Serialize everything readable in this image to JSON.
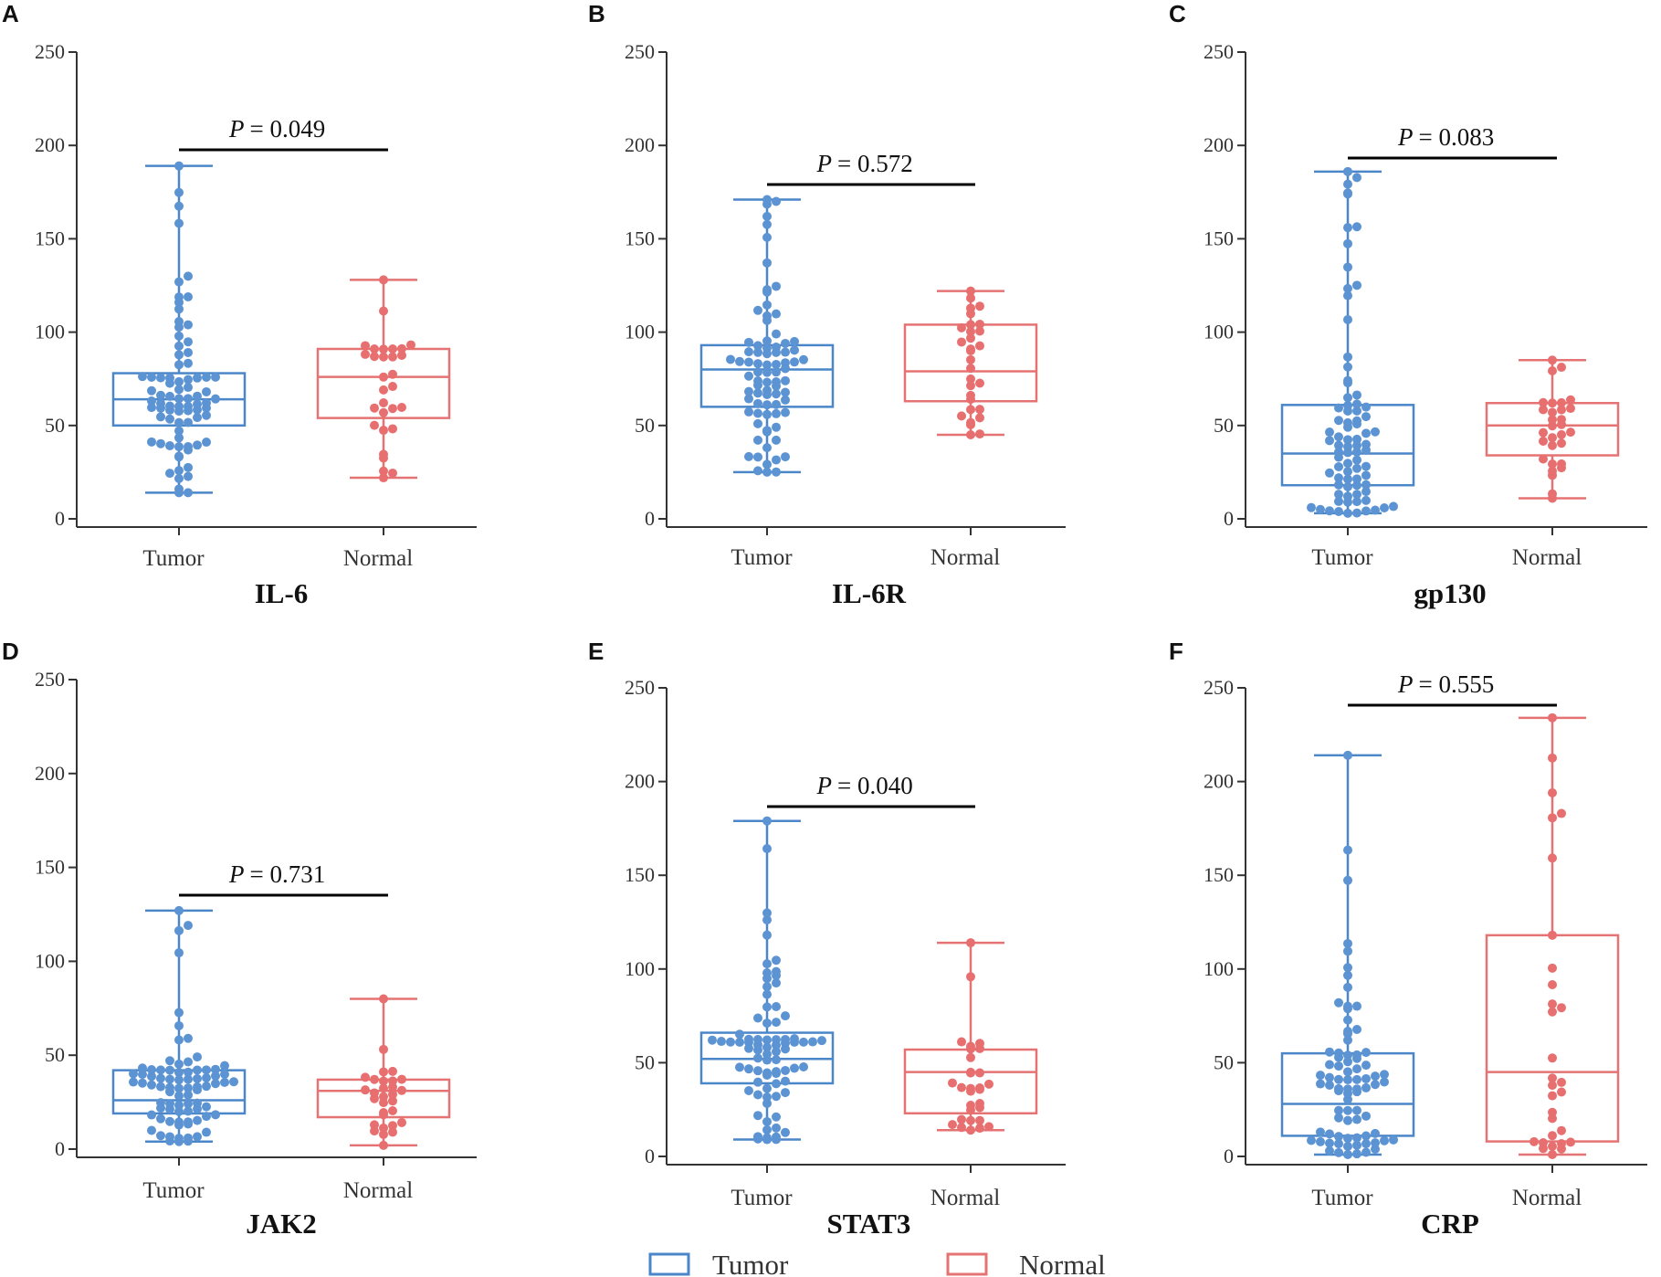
{
  "chart_data": [
    {
      "panel": "A",
      "type": "box",
      "title": "IL-6",
      "ylim": [
        0,
        250
      ],
      "yticks": [
        0,
        50,
        100,
        150,
        200,
        250
      ],
      "categories": [
        "Tumor",
        "Normal"
      ],
      "p_label": "P",
      "p_value": "= 0.049",
      "groups": [
        {
          "name": "Tumor",
          "min": 14,
          "q1": 50,
          "median": 64,
          "q3": 78,
          "max": 189,
          "n": 80
        },
        {
          "name": "Normal",
          "min": 22,
          "q1": 54,
          "median": 76,
          "q3": 91,
          "max": 128,
          "n": 30
        }
      ]
    },
    {
      "panel": "B",
      "type": "box",
      "title": "IL-6R",
      "ylim": [
        0,
        250
      ],
      "yticks": [
        0,
        50,
        100,
        150,
        200,
        250
      ],
      "categories": [
        "Tumor",
        "Normal"
      ],
      "p_label": "P",
      "p_value": "= 0.572",
      "groups": [
        {
          "name": "Tumor",
          "min": 25,
          "q1": 60,
          "median": 80,
          "q3": 93,
          "max": 171,
          "n": 80
        },
        {
          "name": "Normal",
          "min": 45,
          "q1": 63,
          "median": 79,
          "q3": 104,
          "max": 122,
          "n": 30
        }
      ]
    },
    {
      "panel": "C",
      "type": "box",
      "title": "gp130",
      "ylim": [
        0,
        250
      ],
      "yticks": [
        0,
        50,
        100,
        150,
        200,
        250
      ],
      "categories": [
        "Tumor",
        "Normal"
      ],
      "p_label": "P",
      "p_value": "= 0.083",
      "groups": [
        {
          "name": "Tumor",
          "min": 3,
          "q1": 18,
          "median": 35,
          "q3": 61,
          "max": 186,
          "n": 80
        },
        {
          "name": "Normal",
          "min": 11,
          "q1": 34,
          "median": 50,
          "q3": 62,
          "max": 85,
          "n": 30
        }
      ]
    },
    {
      "panel": "D",
      "type": "box",
      "title": "JAK2",
      "ylim": [
        0,
        250
      ],
      "yticks": [
        0,
        50,
        100,
        150,
        200,
        250
      ],
      "categories": [
        "Tumor",
        "Normal"
      ],
      "p_label": "P",
      "p_value": "= 0.731",
      "groups": [
        {
          "name": "Tumor",
          "min": 4,
          "q1": 19,
          "median": 26,
          "q3": 42,
          "max": 127,
          "n": 80
        },
        {
          "name": "Normal",
          "min": 2,
          "q1": 17,
          "median": 31,
          "q3": 37,
          "max": 80,
          "n": 30
        }
      ]
    },
    {
      "panel": "E",
      "type": "box",
      "title": "STAT3",
      "ylim": [
        0,
        250
      ],
      "yticks": [
        0,
        50,
        100,
        150,
        200,
        250
      ],
      "categories": [
        "Tumor",
        "Normal"
      ],
      "p_label": "P",
      "p_value": "= 0.040",
      "groups": [
        {
          "name": "Tumor",
          "min": 9,
          "q1": 39,
          "median": 52,
          "q3": 66,
          "max": 179,
          "n": 80
        },
        {
          "name": "Normal",
          "min": 14,
          "q1": 23,
          "median": 45,
          "q3": 57,
          "max": 114,
          "n": 30
        }
      ]
    },
    {
      "panel": "F",
      "type": "box",
      "title": "CRP",
      "ylim": [
        0,
        250
      ],
      "yticks": [
        0,
        50,
        100,
        150,
        200,
        250
      ],
      "categories": [
        "Tumor",
        "Normal"
      ],
      "p_label": "P",
      "p_value": "= 0.555",
      "groups": [
        {
          "name": "Tumor",
          "min": 1,
          "q1": 11,
          "median": 28,
          "q3": 55,
          "max": 214,
          "n": 80
        },
        {
          "name": "Normal",
          "min": 1,
          "q1": 8,
          "median": 45,
          "q3": 118,
          "max": 234,
          "n": 30
        }
      ]
    }
  ],
  "legend": {
    "items": [
      {
        "label": "Tumor",
        "color": "#4a86c8"
      },
      {
        "label": "Normal",
        "color": "#e57373"
      }
    ]
  },
  "colors": {
    "tumor": "#4a86c8",
    "tumor_dot": "#5b93d3",
    "normal": "#e57373",
    "normal_dot": "#e86f6f",
    "axis": "#333333",
    "sigline": "#000000"
  }
}
